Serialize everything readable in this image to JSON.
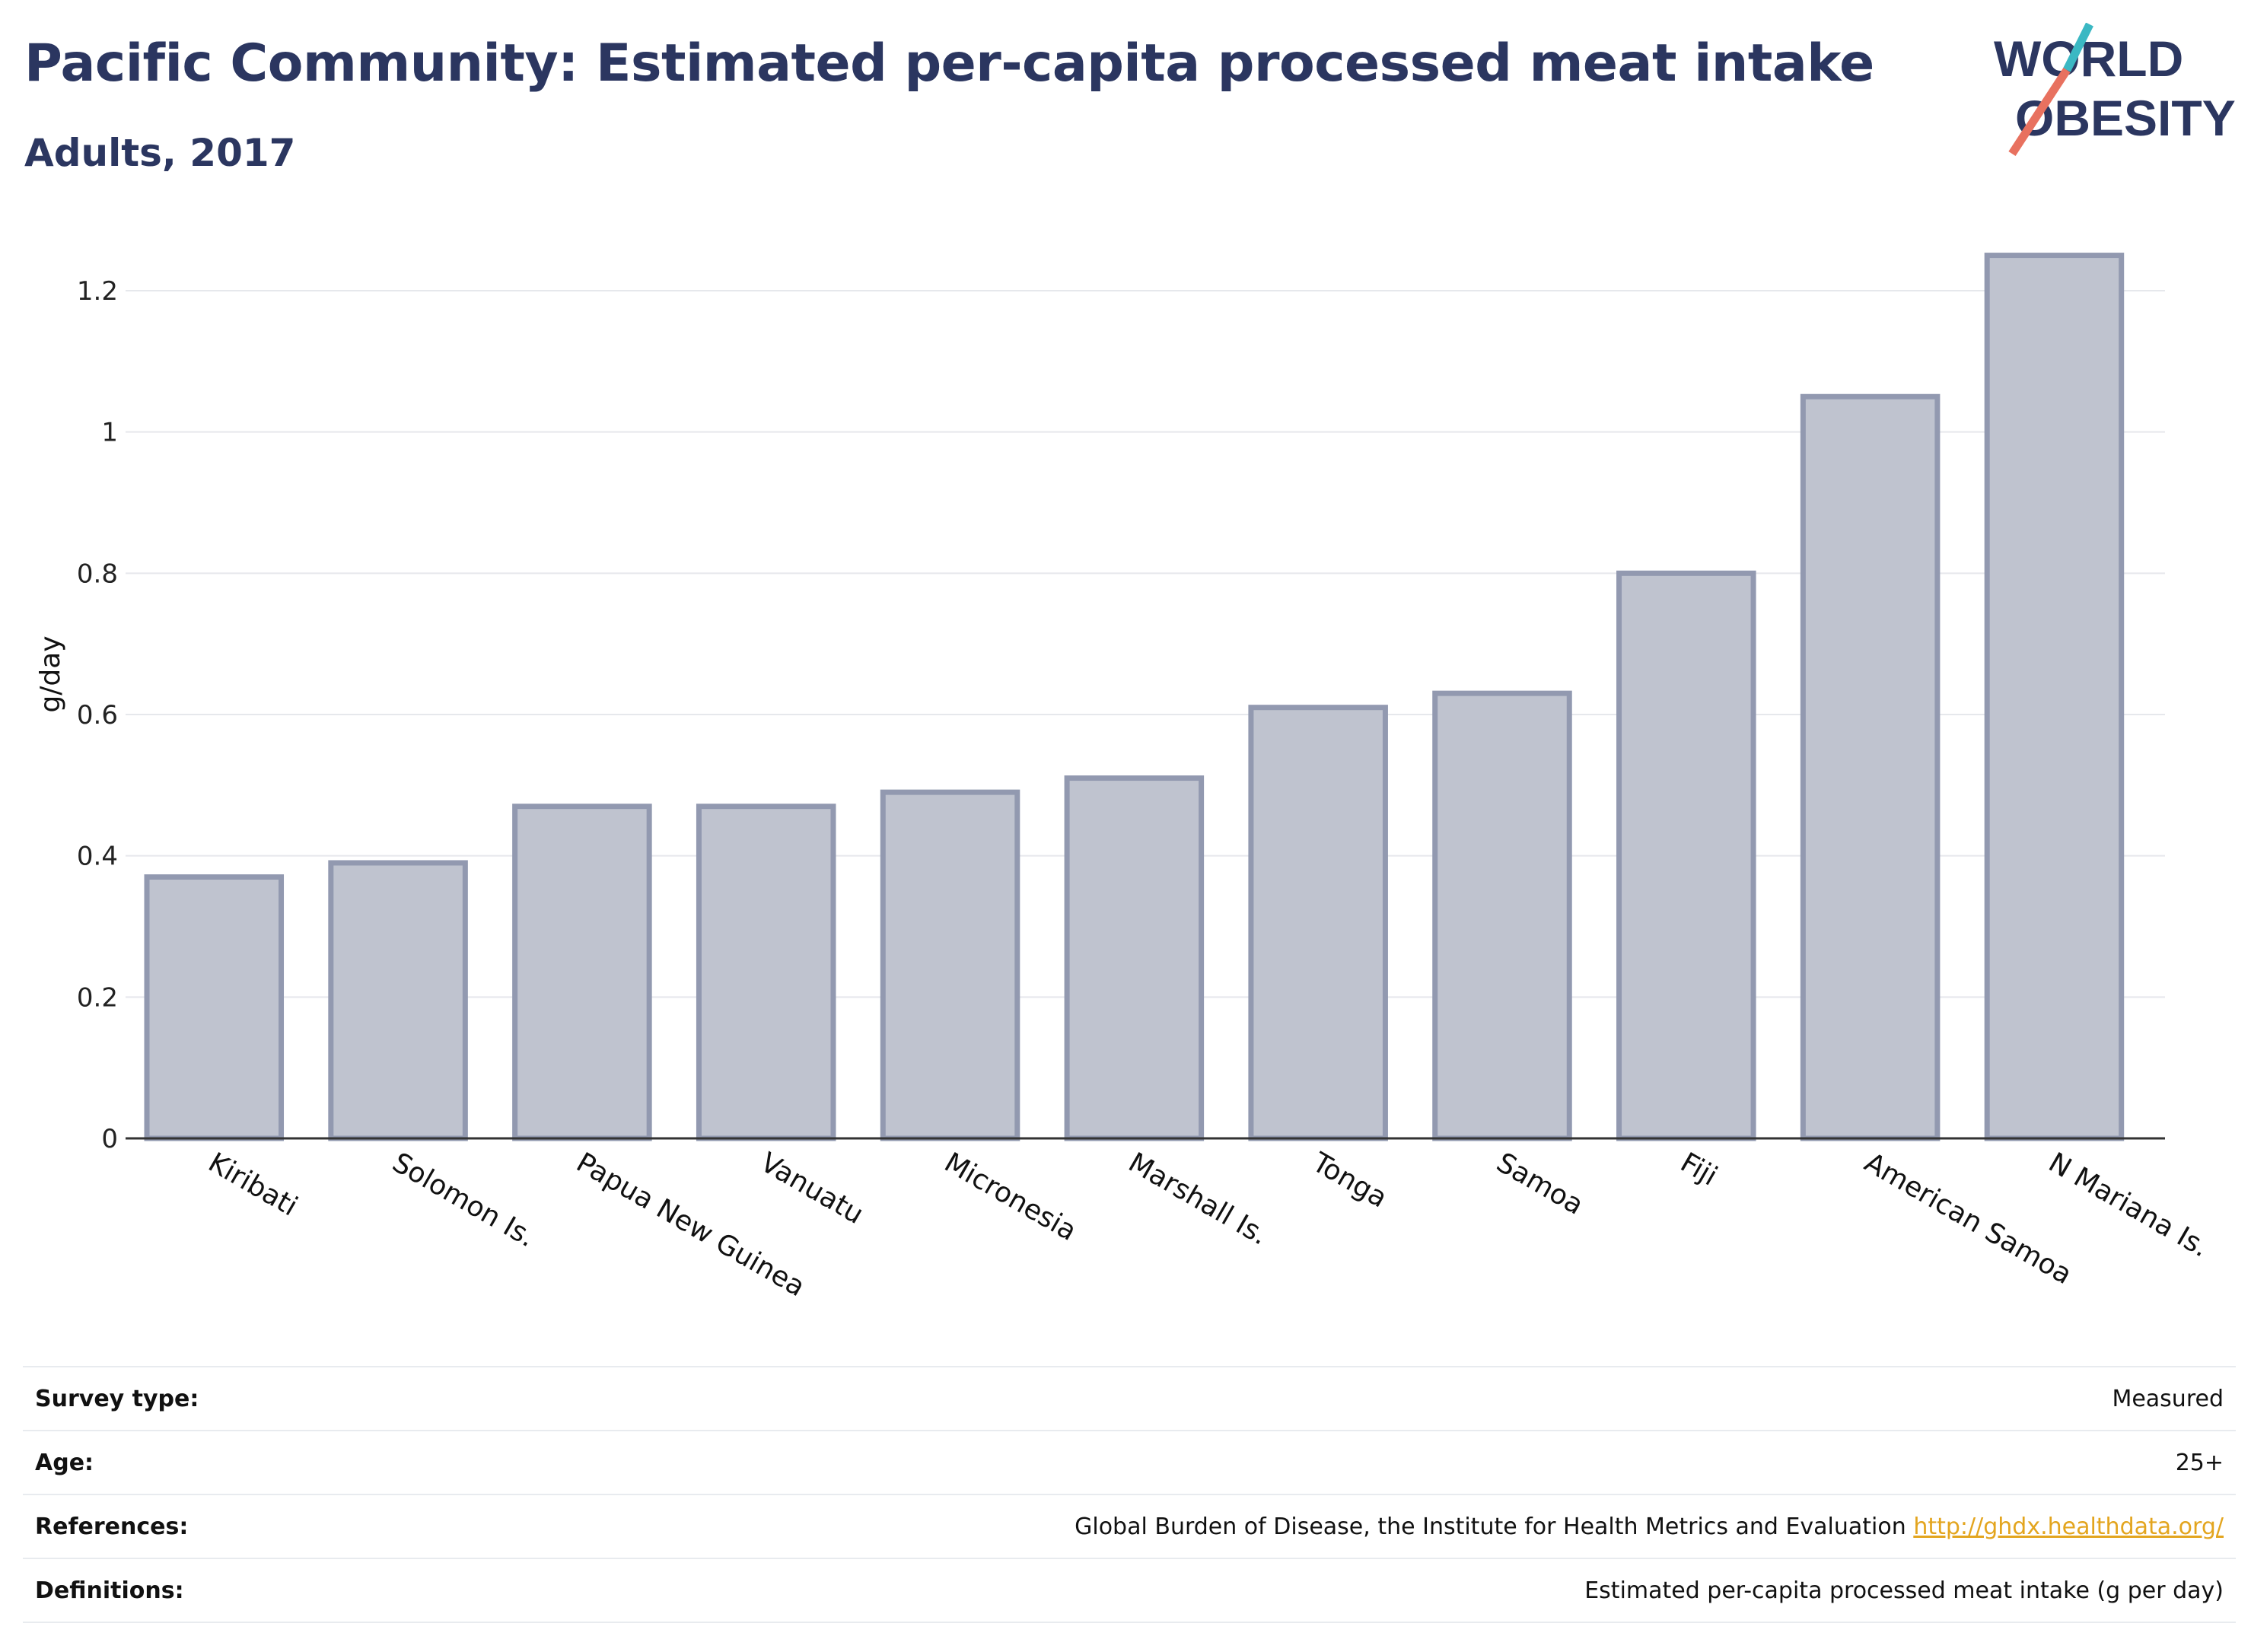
{
  "header": {
    "title": "Pacific Community: Estimated per-capita processed meat intake",
    "subtitle": "Adults, 2017"
  },
  "logo": {
    "line1": "WORLD",
    "line2": "OBESITY",
    "colors": {
      "text": "#2b3660",
      "slash_top": "#3bb8c3",
      "slash_bottom": "#e8715f"
    }
  },
  "chart_data": {
    "type": "bar",
    "categories": [
      "Kiribati",
      "Solomon Is.",
      "Papua New Guinea",
      "Vanuatu",
      "Micronesia",
      "Marshall Is.",
      "Tonga",
      "Samoa",
      "Fiji",
      "American Samoa",
      "N Mariana Is."
    ],
    "values": [
      0.37,
      0.39,
      0.47,
      0.47,
      0.49,
      0.51,
      0.61,
      0.63,
      0.8,
      1.05,
      1.25
    ],
    "ylabel": "g/day",
    "ylim": [
      0,
      1.3
    ],
    "yticks": [
      0,
      0.2,
      0.4,
      0.6,
      0.8,
      1,
      1.2
    ],
    "ytick_labels": [
      "0",
      "0.2",
      "0.4",
      "0.6",
      "0.8",
      "1",
      "1.2"
    ],
    "grid": true,
    "bar_fill": "#bfc3cf",
    "bar_stroke": "#9299b0"
  },
  "info": {
    "survey_type": {
      "label": "Survey type:",
      "value": "Measured"
    },
    "age": {
      "label": "Age:",
      "value": "25+"
    },
    "references": {
      "label": "References:",
      "value": "Global Burden of Disease, the Institute for Health Metrics and Evaluation",
      "link": "http://ghdx.healthdata.org/"
    },
    "definitions": {
      "label": "Definitions:",
      "value": "Estimated per-capita processed meat intake (g per day)"
    }
  }
}
